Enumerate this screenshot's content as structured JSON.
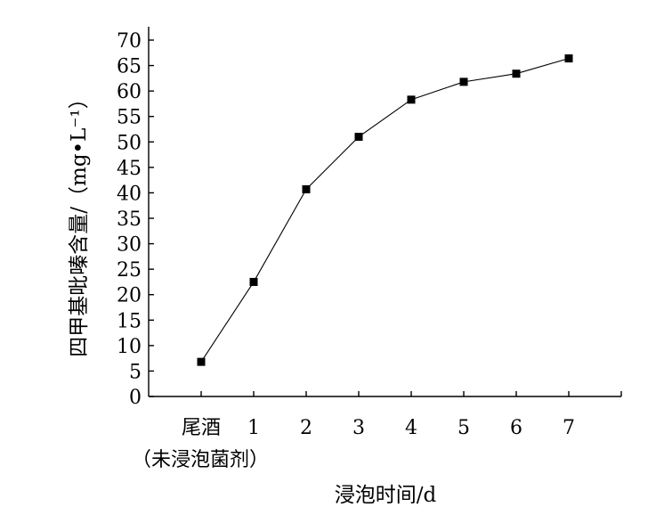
{
  "chart_data": {
    "type": "line",
    "xlabel": "浸泡时间/d",
    "ylabel": "四甲基吡嗪含量/（mg•L⁻¹）",
    "categories": [
      "尾酒",
      "1",
      "2",
      "3",
      "4",
      "5",
      "6",
      "7"
    ],
    "category_sublabel": "（未浸泡菌剂）",
    "series": [
      {
        "values": [
          6.8,
          22.5,
          40.7,
          51.0,
          58.3,
          61.8,
          63.4,
          66.4
        ]
      }
    ],
    "ylim": [
      0,
      70
    ],
    "yticks": [
      0,
      5,
      10,
      15,
      20,
      25,
      30,
      35,
      40,
      45,
      50,
      55,
      60,
      65,
      70
    ],
    "grid": false,
    "legend": "none",
    "colors": {
      "line": "#000000",
      "marker": "#000000"
    }
  }
}
